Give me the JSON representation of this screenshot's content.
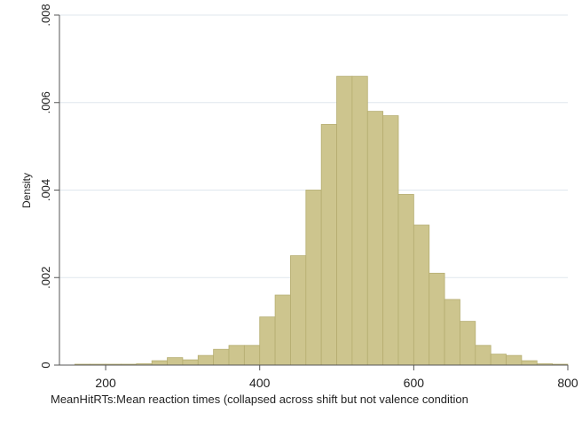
{
  "chart_data": {
    "type": "bar",
    "title": "",
    "xlabel": "MeanHitRTs:Mean reaction times (collapsed across shift but not valence condition",
    "ylabel": "Density",
    "xlim": [
      140,
      800
    ],
    "ylim": [
      0,
      0.008
    ],
    "x_ticks": [
      200,
      400,
      600,
      800
    ],
    "x_tick_labels": [
      "200",
      "400",
      "600",
      "800"
    ],
    "y_ticks": [
      0,
      0.002,
      0.004,
      0.006,
      0.008
    ],
    "y_tick_labels": [
      "0",
      ".002",
      ".004",
      ".006",
      ".008"
    ],
    "grid": "horizontal",
    "bin_width": 20,
    "bin_starts": [
      160,
      180,
      200,
      220,
      240,
      260,
      280,
      300,
      320,
      340,
      360,
      380,
      400,
      420,
      440,
      460,
      480,
      500,
      520,
      540,
      560,
      580,
      600,
      620,
      640,
      660,
      680,
      700,
      720,
      740,
      760,
      780
    ],
    "values": [
      2e-05,
      2e-05,
      2e-05,
      2e-05,
      3e-05,
      0.0001,
      0.00017,
      0.00012,
      0.00022,
      0.00036,
      0.00045,
      0.00045,
      0.0011,
      0.0016,
      0.0025,
      0.004,
      0.0055,
      0.0066,
      0.0066,
      0.0058,
      0.0057,
      0.0039,
      0.0032,
      0.0021,
      0.0015,
      0.001,
      0.00045,
      0.00025,
      0.00022,
      0.0001,
      3e-05,
      2e-05
    ],
    "colors": {
      "bar_fill": "#cdc58e",
      "bar_stroke": "#b5ad70",
      "grid": "#dfe7ee",
      "axis": "#555555"
    }
  }
}
